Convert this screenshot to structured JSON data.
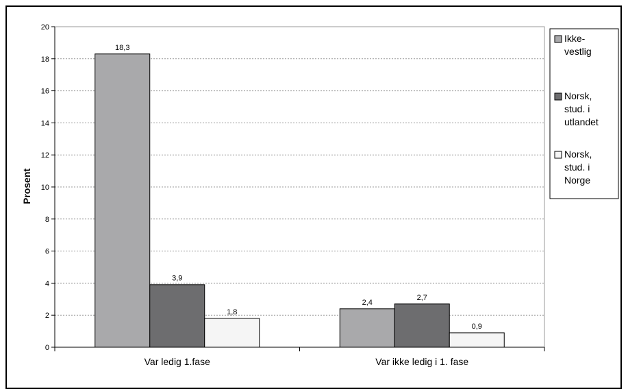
{
  "chart_data": {
    "type": "bar",
    "title": "",
    "xlabel": "",
    "ylabel": "Prosent",
    "ylim": [
      0,
      20
    ],
    "yticks": [
      0,
      2,
      4,
      6,
      8,
      10,
      12,
      14,
      16,
      18,
      20
    ],
    "grid": true,
    "legend_position": "right",
    "categories": [
      "Var ledig 1.fase",
      "Var ikke ledig i 1. fase"
    ],
    "series": [
      {
        "name": "Ikke-vestlig",
        "legend_lines": [
          "Ikke-",
          "vestlig"
        ],
        "color": "#a9a9ab",
        "values": [
          18.3,
          2.4
        ],
        "labels": [
          "18,3",
          "2,4"
        ]
      },
      {
        "name": "Norsk, stud. i utlandet",
        "legend_lines": [
          "Norsk,",
          "stud. i",
          "utlandet"
        ],
        "color": "#6d6d6f",
        "values": [
          3.9,
          2.7
        ],
        "labels": [
          "3,9",
          "2,7"
        ]
      },
      {
        "name": "Norsk, stud. i Norge",
        "legend_lines": [
          "Norsk,",
          "stud. i",
          "Norge"
        ],
        "color": "#f5f5f5",
        "values": [
          1.8,
          0.9
        ],
        "labels": [
          "1,8",
          "0,9"
        ]
      }
    ]
  }
}
